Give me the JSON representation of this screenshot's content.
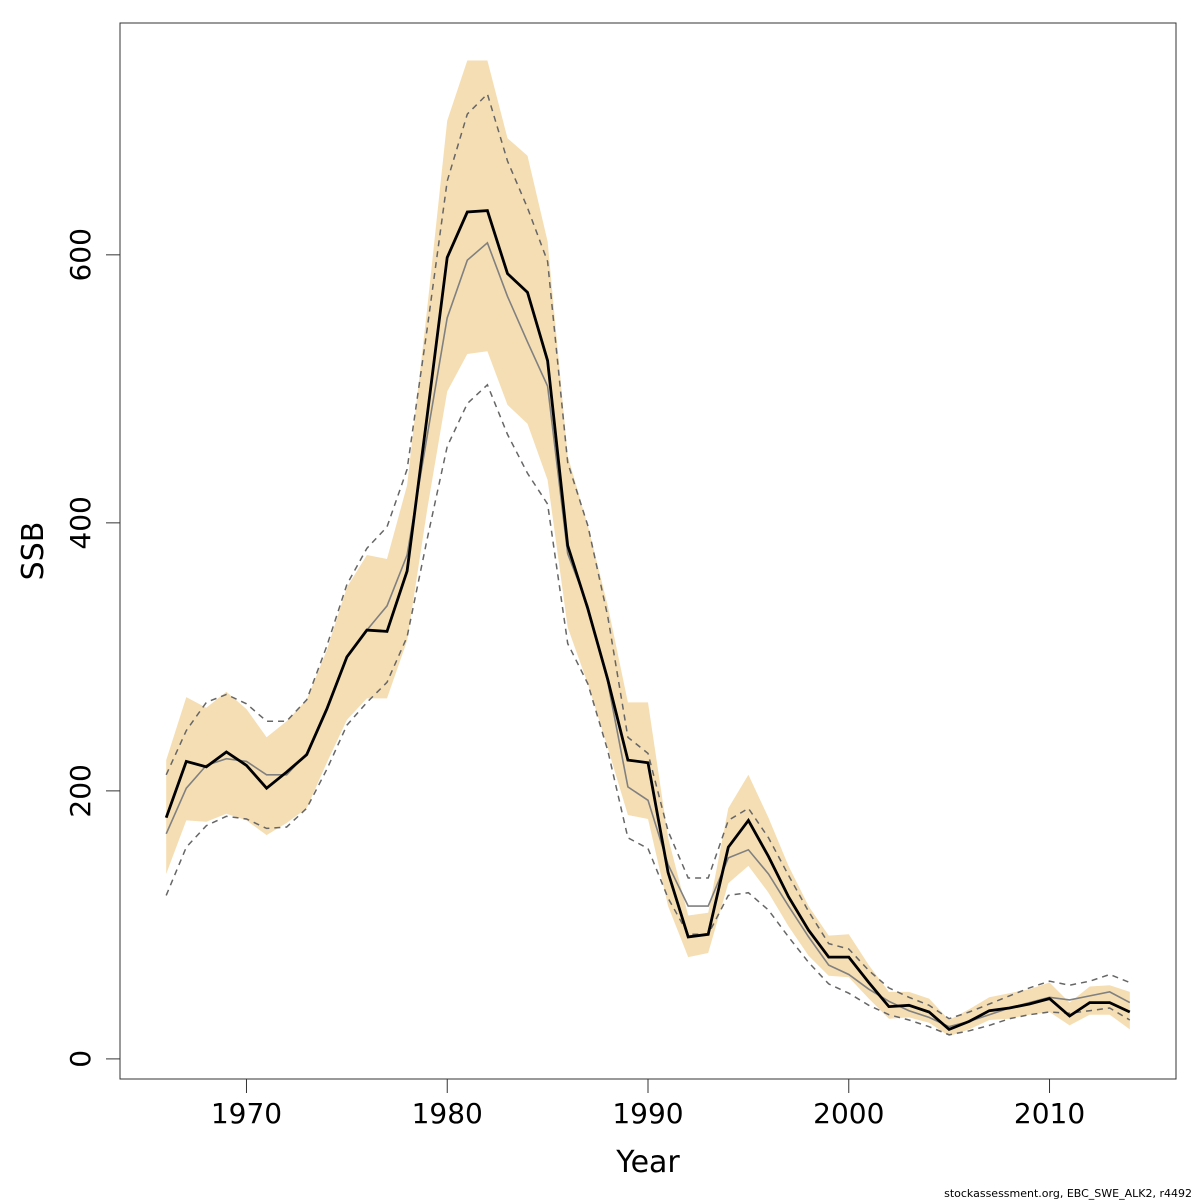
{
  "chart_data": {
    "type": "line",
    "xlabel": "Year",
    "ylabel": "SSB",
    "footer": "stockassessment.org, EBC_SWE_ALK2, r4492",
    "xlim": [
      1963.7,
      2016.3
    ],
    "ylim": [
      -15,
      773
    ],
    "x_ticks": [
      1970,
      1980,
      1990,
      2000,
      2010
    ],
    "x_tick_labels": [
      "1970",
      "1980",
      "1990",
      "2000",
      "2010"
    ],
    "y_ticks": [
      0,
      200,
      400,
      600
    ],
    "y_tick_labels": [
      "0",
      "200",
      "400",
      "600"
    ],
    "colors": {
      "band": "#f5deb3",
      "estimate": "#000000",
      "comparison_line": "#808080",
      "comparison_bounds": "#666666"
    },
    "x": [
      1966,
      1967,
      1968,
      1969,
      1970,
      1971,
      1972,
      1973,
      1974,
      1975,
      1976,
      1977,
      1978,
      1979,
      1980,
      1981,
      1982,
      1983,
      1984,
      1985,
      1986,
      1987,
      1988,
      1989,
      1990,
      1991,
      1992,
      1993,
      1994,
      1995,
      1996,
      1997,
      1998,
      1999,
      2000,
      2001,
      2002,
      2003,
      2004,
      2005,
      2006,
      2007,
      2008,
      2009,
      2010,
      2011,
      2012,
      2013,
      2014
    ],
    "series": [
      {
        "role": "estimate",
        "values": [
          180,
          222,
          218,
          229,
          219,
          202,
          214,
          227,
          261,
          300,
          320,
          319,
          364,
          480,
          598,
          632,
          633,
          586,
          572,
          521,
          383,
          336,
          283,
          223,
          221,
          139,
          91,
          93,
          158,
          178,
          151,
          121,
          96,
          76,
          76,
          57,
          39,
          40,
          35,
          22,
          28,
          36,
          38,
          41,
          45,
          32,
          42,
          42,
          35
        ]
      },
      {
        "role": "band_upper",
        "values": [
          223,
          270,
          262,
          274,
          261,
          240,
          252,
          268,
          305,
          352,
          376,
          373,
          428,
          560,
          700,
          745,
          745,
          687,
          674,
          610,
          450,
          398,
          338,
          266,
          266,
          165,
          107,
          109,
          187,
          212,
          180,
          144,
          114,
          92,
          93,
          70,
          50,
          50,
          45,
          29,
          37,
          46,
          49,
          52,
          57,
          42,
          54,
          55,
          50
        ]
      },
      {
        "role": "band_lower",
        "values": [
          138,
          178,
          177,
          183,
          178,
          167,
          176,
          187,
          221,
          253,
          269,
          269,
          312,
          410,
          498,
          526,
          528,
          488,
          474,
          432,
          322,
          280,
          232,
          182,
          179,
          114,
          76,
          79,
          131,
          144,
          124,
          99,
          77,
          62,
          61,
          45,
          30,
          31,
          27,
          17,
          22,
          29,
          30,
          33,
          35,
          25,
          33,
          33,
          22
        ]
      },
      {
        "role": "comparison_estimate",
        "values": [
          168,
          202,
          219,
          224,
          222,
          212,
          212,
          228,
          262,
          300,
          320,
          338,
          376,
          465,
          553,
          596,
          609,
          569,
          535,
          502,
          377,
          338,
          281,
          203,
          193,
          145,
          114,
          114,
          150,
          156,
          138,
          114,
          91,
          70,
          63,
          52,
          43,
          36,
          31,
          24,
          28,
          33,
          38,
          42,
          46,
          44,
          47,
          50,
          42
        ]
      },
      {
        "role": "comparison_upper",
        "values": [
          212,
          245,
          266,
          272,
          265,
          252,
          252,
          268,
          308,
          354,
          381,
          397,
          440,
          545,
          655,
          705,
          720,
          670,
          635,
          595,
          445,
          398,
          330,
          240,
          228,
          170,
          135,
          135,
          178,
          187,
          165,
          137,
          110,
          86,
          82,
          66,
          53,
          46,
          40,
          30,
          35,
          41,
          47,
          53,
          58,
          55,
          58,
          63,
          57
        ]
      },
      {
        "role": "comparison_lower",
        "values": [
          122,
          158,
          174,
          181,
          179,
          172,
          173,
          187,
          216,
          249,
          266,
          281,
          315,
          388,
          457,
          489,
          503,
          466,
          437,
          414,
          310,
          280,
          230,
          165,
          157,
          120,
          93,
          93,
          122,
          124,
          111,
          91,
          72,
          56,
          49,
          40,
          33,
          29,
          24,
          18,
          21,
          25,
          30,
          33,
          35,
          34,
          36,
          38,
          29
        ]
      }
    ]
  }
}
